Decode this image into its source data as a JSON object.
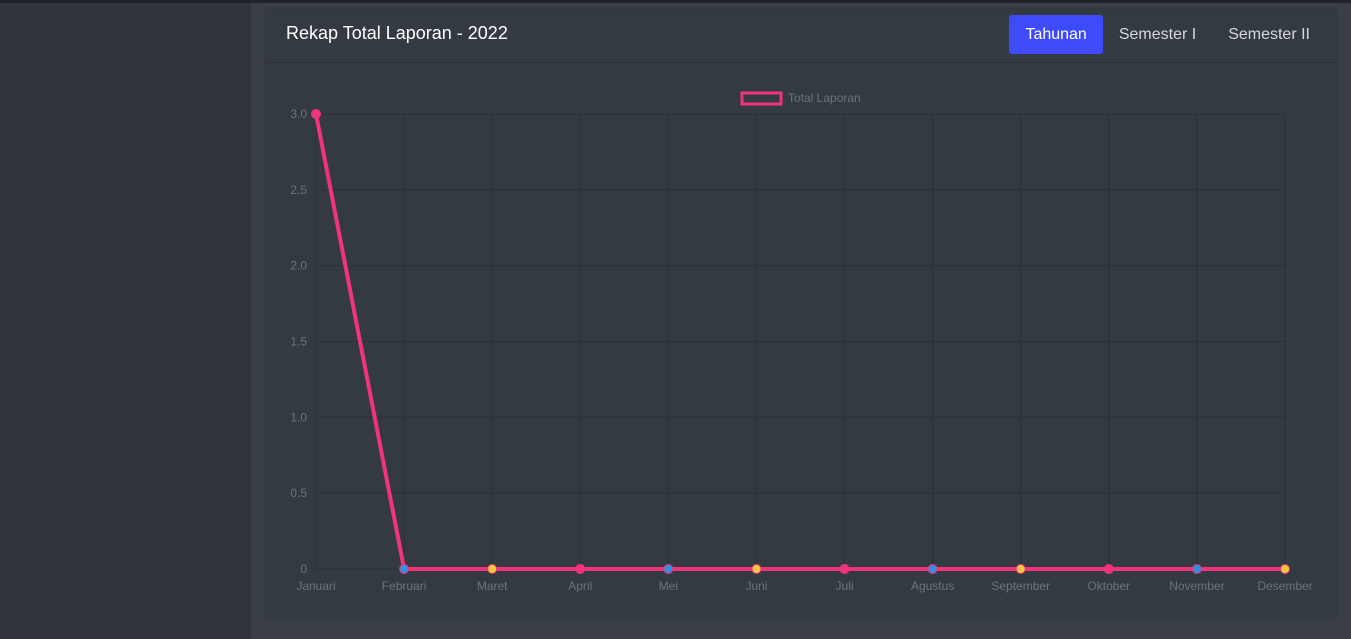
{
  "card": {
    "title": "Rekap Total Laporan - 2022",
    "tabs": [
      {
        "label": "Tahunan",
        "active": true
      },
      {
        "label": "Semester I",
        "active": false
      },
      {
        "label": "Semester II",
        "active": false
      }
    ]
  },
  "colors": {
    "line": "#f0347a",
    "grid": "#2b3037",
    "tick_text": "#6c737c",
    "active_tab": "#3d4bfa",
    "point_colors": [
      "#f0347a",
      "#2f8fe0",
      "#f5c93b"
    ]
  },
  "chart_data": {
    "type": "line",
    "title": "",
    "xlabel": "",
    "ylabel": "",
    "categories": [
      "Januari",
      "Februari",
      "Maret",
      "April",
      "Mei",
      "Juni",
      "Juli",
      "Agustus",
      "September",
      "Oktober",
      "November",
      "Desember"
    ],
    "series": [
      {
        "name": "Total Laporan",
        "values": [
          3,
          0,
          0,
          0,
          0,
          0,
          0,
          0,
          0,
          0,
          0,
          0
        ]
      }
    ],
    "ylim": [
      0,
      3
    ],
    "yticks": [
      "0",
      "0.5",
      "1.0",
      "1.5",
      "2.0",
      "2.5",
      "3.0"
    ],
    "grid": true,
    "legend": "top-center"
  }
}
